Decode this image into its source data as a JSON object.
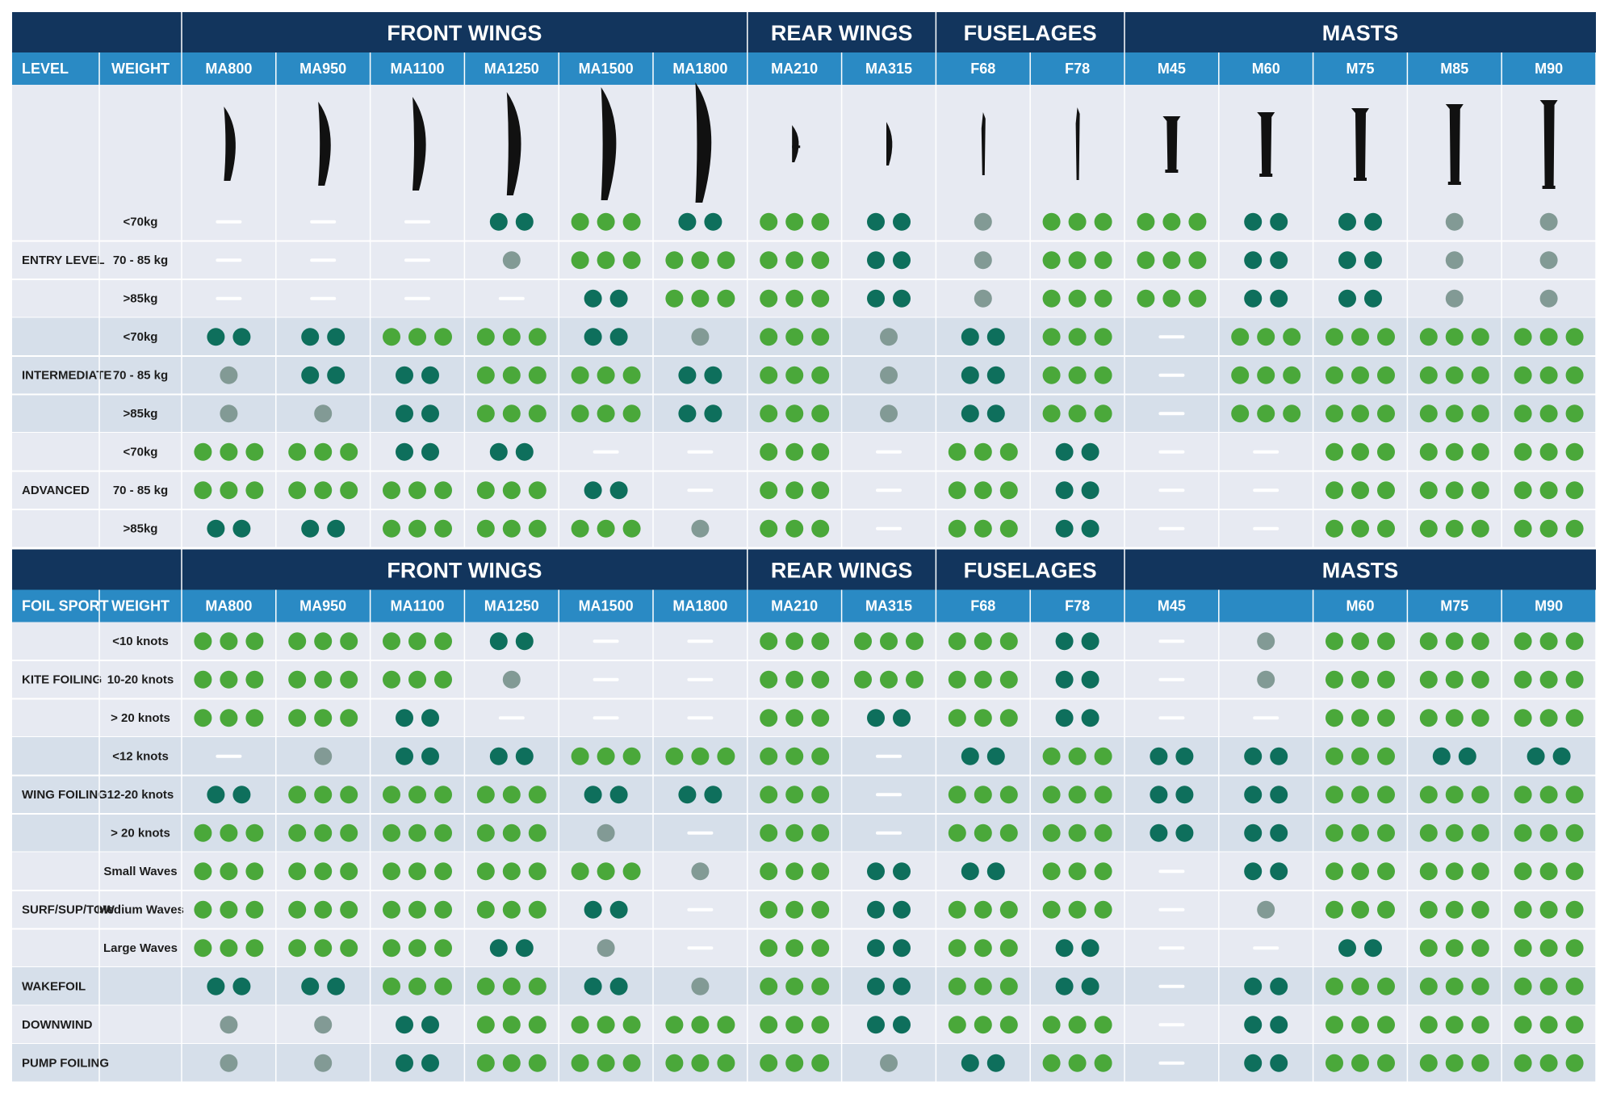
{
  "colors": {
    "navy": "#12355d",
    "blue": "#2a8ac4",
    "row_light": "#e7eaf2",
    "row_dark": "#d6dfea",
    "divider": "#ffffff",
    "dot_three": "#4aa83a",
    "dot_two": "#0e6f5c",
    "dot_one": "#829a95",
    "dash": "#ffffff"
  },
  "legend_note": "values: 3 = three green dots, 2 = two teal dots, 1 = one grey dot, 0 = dash",
  "chart_data": [
    {
      "type": "table",
      "groups": [
        {
          "label": "FRONT WINGS",
          "span": 6
        },
        {
          "label": "REAR WINGS",
          "span": 2
        },
        {
          "label": "FUSELAGES",
          "span": 2
        },
        {
          "label": "MASTS",
          "span": 5
        }
      ],
      "col_header_1": "LEVEL",
      "col_header_2": "WEIGHT",
      "columns": [
        "MA800",
        "MA950",
        "MA1100",
        "MA1250",
        "MA1500",
        "MA1800",
        "MA210",
        "MA315",
        "F68",
        "F78",
        "M45",
        "M60",
        "M75",
        "M85",
        "M90"
      ],
      "silhouettes": [
        "wing-1",
        "wing-2",
        "wing-3",
        "wing-4",
        "wing-5",
        "wing-6",
        "rear-1",
        "rear-2",
        "fuse-1",
        "fuse-2",
        "mast-1",
        "mast-2",
        "mast-3",
        "mast-4",
        "mast-5"
      ],
      "sections": [
        {
          "label": "ENTRY LEVEL",
          "rows": [
            {
              "label": "<70kg",
              "values": [
                0,
                0,
                0,
                2,
                3,
                2,
                3,
                2,
                1,
                3,
                3,
                2,
                2,
                1,
                1
              ]
            },
            {
              "label": "70 - 85 kg",
              "values": [
                0,
                0,
                0,
                1,
                3,
                3,
                3,
                2,
                1,
                3,
                3,
                2,
                2,
                1,
                1
              ]
            },
            {
              "label": ">85kg",
              "values": [
                0,
                0,
                0,
                0,
                2,
                3,
                3,
                2,
                1,
                3,
                3,
                2,
                2,
                1,
                1
              ]
            }
          ]
        },
        {
          "label": "INTERMEDIATE",
          "rows": [
            {
              "label": "<70kg",
              "values": [
                2,
                2,
                3,
                3,
                2,
                1,
                3,
                1,
                2,
                3,
                0,
                3,
                3,
                3,
                3
              ]
            },
            {
              "label": "70 - 85 kg",
              "values": [
                1,
                2,
                2,
                3,
                3,
                2,
                3,
                1,
                2,
                3,
                0,
                3,
                3,
                3,
                3
              ]
            },
            {
              "label": ">85kg",
              "values": [
                1,
                1,
                2,
                3,
                3,
                2,
                3,
                1,
                2,
                3,
                0,
                3,
                3,
                3,
                3
              ]
            }
          ]
        },
        {
          "label": "ADVANCED",
          "rows": [
            {
              "label": "<70kg",
              "values": [
                3,
                3,
                2,
                2,
                0,
                0,
                3,
                0,
                3,
                2,
                0,
                0,
                3,
                3,
                3
              ]
            },
            {
              "label": "70 - 85 kg",
              "values": [
                3,
                3,
                3,
                3,
                2,
                0,
                3,
                0,
                3,
                2,
                0,
                0,
                3,
                3,
                3
              ]
            },
            {
              "label": ">85kg",
              "values": [
                2,
                2,
                3,
                3,
                3,
                1,
                3,
                0,
                3,
                2,
                0,
                0,
                3,
                3,
                3
              ]
            }
          ]
        }
      ]
    },
    {
      "type": "table",
      "groups": [
        {
          "label": "FRONT WINGS",
          "span": 6
        },
        {
          "label": "REAR WINGS",
          "span": 2
        },
        {
          "label": "FUSELAGES",
          "span": 2
        },
        {
          "label": "MASTS",
          "span": 5
        }
      ],
      "col_header_1": "FOIL SPORT",
      "col_header_2": "WEIGHT",
      "columns": [
        "MA800",
        "MA950",
        "MA1100",
        "MA1250",
        "MA1500",
        "MA1800",
        "MA210",
        "MA315",
        "F68",
        "F78",
        "M45",
        "",
        "M60",
        "M75",
        "M90"
      ],
      "sections": [
        {
          "label": "KITE FOILING",
          "rows": [
            {
              "label": "<10 knots",
              "values": [
                3,
                3,
                3,
                2,
                0,
                0,
                3,
                3,
                3,
                2,
                0,
                1,
                3,
                3,
                3
              ]
            },
            {
              "label": "10-20 knots",
              "values": [
                3,
                3,
                3,
                1,
                0,
                0,
                3,
                3,
                3,
                2,
                0,
                1,
                3,
                3,
                3
              ]
            },
            {
              "label": "> 20 knots",
              "values": [
                3,
                3,
                2,
                0,
                0,
                0,
                3,
                2,
                3,
                2,
                0,
                0,
                3,
                3,
                3
              ]
            }
          ]
        },
        {
          "label": "WING FOILING",
          "rows": [
            {
              "label": "<12 knots",
              "values": [
                0,
                1,
                2,
                2,
                3,
                3,
                3,
                0,
                2,
                3,
                2,
                2,
                3,
                2,
                2
              ]
            },
            {
              "label": "12-20 knots",
              "values": [
                2,
                3,
                3,
                3,
                2,
                2,
                3,
                0,
                3,
                3,
                2,
                2,
                3,
                3,
                3
              ]
            },
            {
              "label": "> 20 knots",
              "values": [
                3,
                3,
                3,
                3,
                1,
                0,
                3,
                0,
                3,
                3,
                2,
                2,
                3,
                3,
                3
              ]
            }
          ]
        },
        {
          "label": "SURF/SUP/TOW",
          "rows": [
            {
              "label": "Small Waves",
              "values": [
                3,
                3,
                3,
                3,
                3,
                1,
                3,
                2,
                2,
                3,
                0,
                2,
                3,
                3,
                3
              ]
            },
            {
              "label": "Medium Waves",
              "values": [
                3,
                3,
                3,
                3,
                2,
                0,
                3,
                2,
                3,
                3,
                0,
                1,
                3,
                3,
                3
              ]
            },
            {
              "label": "Large Waves",
              "values": [
                3,
                3,
                3,
                2,
                1,
                0,
                3,
                2,
                3,
                2,
                0,
                0,
                2,
                3,
                3
              ]
            }
          ]
        },
        {
          "label": "WAKEFOIL",
          "single": true,
          "rows": [
            {
              "label": "",
              "values": [
                2,
                2,
                3,
                3,
                2,
                1,
                3,
                2,
                3,
                2,
                0,
                2,
                3,
                3,
                3
              ]
            }
          ]
        },
        {
          "label": "DOWNWIND",
          "single": true,
          "rows": [
            {
              "label": "",
              "values": [
                1,
                1,
                2,
                3,
                3,
                3,
                3,
                2,
                3,
                3,
                0,
                2,
                3,
                3,
                3
              ]
            }
          ]
        },
        {
          "label": "PUMP FOILING",
          "single": true,
          "rows": [
            {
              "label": "",
              "values": [
                1,
                1,
                2,
                3,
                3,
                3,
                3,
                1,
                2,
                3,
                0,
                2,
                3,
                3,
                3
              ]
            }
          ]
        }
      ]
    }
  ]
}
